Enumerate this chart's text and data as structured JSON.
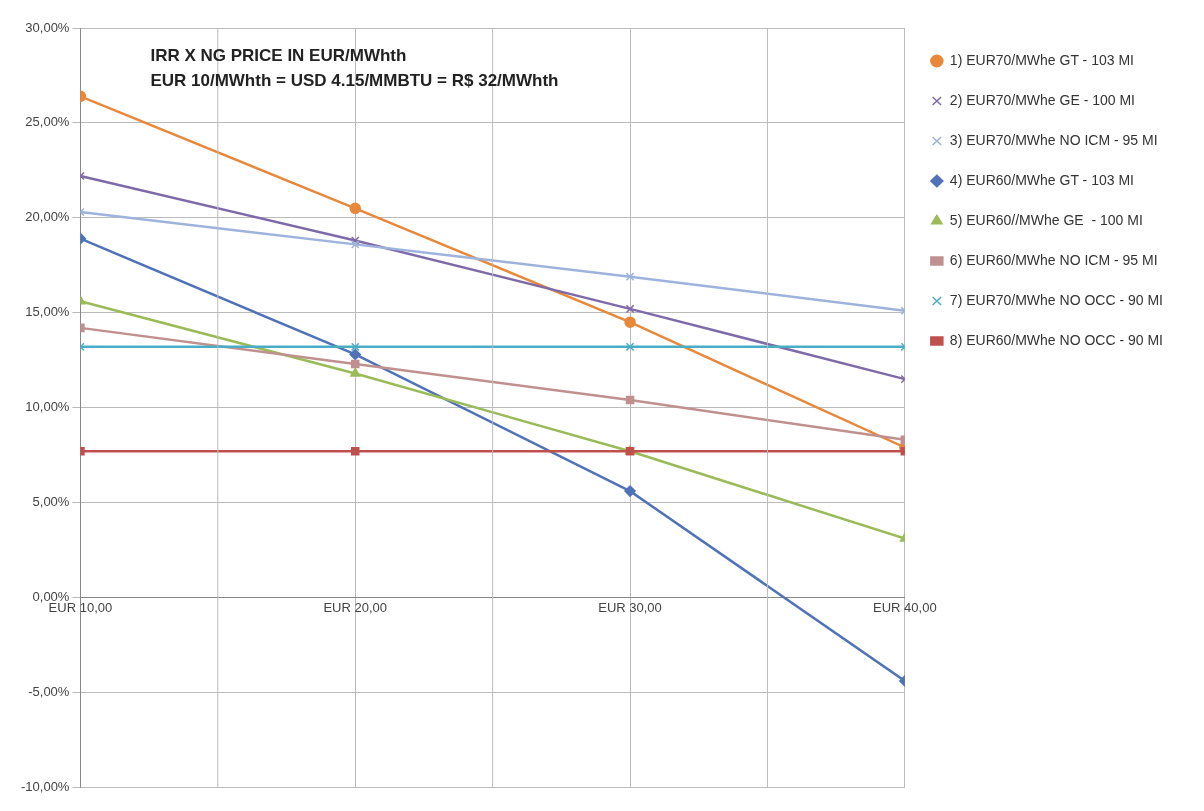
{
  "chart_data": {
    "type": "line",
    "title": "IRR X NG PRICE IN EUR/MWhth",
    "subtitle": "EUR 10/MWhth = USD 4.15/MMBTU = R$ 32/MWhth",
    "categories": [
      "EUR 10,00",
      "EUR 20,00",
      "EUR 30,00",
      "EUR 40,00"
    ],
    "ylim": [
      -10,
      30
    ],
    "yticks": [
      {
        "value": -10,
        "label": "-10,00%"
      },
      {
        "value": -5,
        "label": "-5,00%"
      },
      {
        "value": 0,
        "label": "0,00%"
      },
      {
        "value": 5,
        "label": "5,00%"
      },
      {
        "value": 10,
        "label": "10,00%"
      },
      {
        "value": 15,
        "label": "15,00%"
      },
      {
        "value": 20,
        "label": "20,00%"
      },
      {
        "value": 25,
        "label": "25,00%"
      },
      {
        "value": 30,
        "label": "30,00%"
      }
    ],
    "grid": true,
    "legend": "right",
    "series": [
      {
        "name": "1) EUR70/MWhe GT - 103 MI",
        "color": "#e8883a",
        "marker": "circle",
        "values": [
          26.4,
          20.5,
          14.5,
          7.9
        ]
      },
      {
        "name": "2) EUR70/MWhe GE - 100 MI",
        "color": "#7f6aa8",
        "marker": "cross",
        "values": [
          22.2,
          18.8,
          15.2,
          11.5
        ]
      },
      {
        "name": "3) EUR70/MWhe NO ICM - 95 MI",
        "color": "#9db3dc",
        "marker": "cross",
        "values": [
          20.3,
          18.6,
          16.9,
          15.1
        ]
      },
      {
        "name": "4) EUR60/MWhe GT - 103 MI",
        "color": "#4f72b8",
        "marker": "diamond",
        "values": [
          18.9,
          12.8,
          5.6,
          -4.4
        ]
      },
      {
        "name": "5) EUR60//MWhe GE  - 100 MI",
        "color": "#9bbb59",
        "marker": "triangle",
        "values": [
          15.6,
          11.8,
          7.7,
          3.1
        ]
      },
      {
        "name": "6) EUR60/MWhe NO ICM - 95 MI",
        "color": "#c0908f",
        "marker": "square",
        "values": [
          14.2,
          12.3,
          10.4,
          8.3
        ]
      },
      {
        "name": "7) EUR70/MWhe NO OCC - 90 MI",
        "color": "#4bacc6",
        "marker": "cross",
        "values": [
          13.2,
          13.2,
          13.2,
          13.2
        ]
      },
      {
        "name": "8) EUR60/MWhe NO OCC - 90 MI",
        "color": "#c0504d",
        "marker": "square",
        "values": [
          7.7,
          7.7,
          7.7,
          7.7
        ]
      }
    ]
  }
}
